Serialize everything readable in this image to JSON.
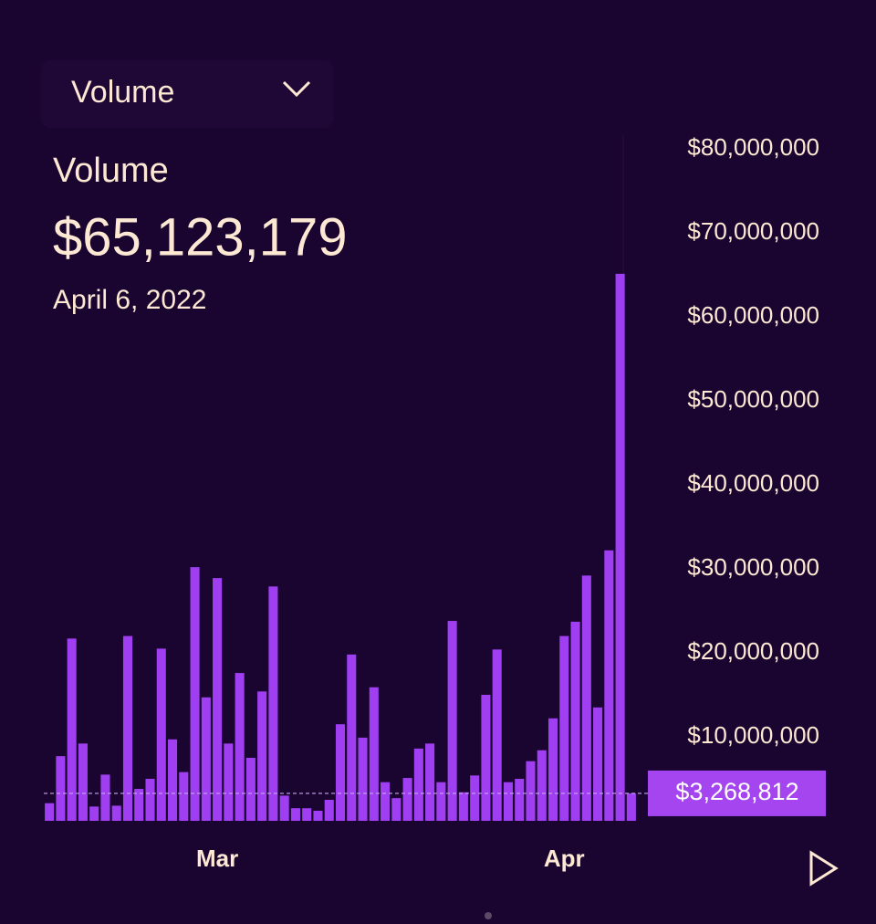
{
  "chart_data": {
    "type": "bar",
    "dropdown": "Volume",
    "title": "Volume",
    "headline": "$65,123,179",
    "subtitle": "April 6, 2022",
    "categories": [
      null,
      null,
      null,
      null,
      null,
      null,
      null,
      null,
      null,
      null,
      null,
      null,
      null,
      null,
      null,
      "Mar",
      null,
      null,
      null,
      null,
      null,
      null,
      null,
      null,
      null,
      null,
      null,
      null,
      null,
      null,
      null,
      null,
      null,
      null,
      null,
      null,
      null,
      null,
      null,
      null,
      null,
      null,
      null,
      null,
      null,
      null,
      "Apr",
      null,
      null,
      null,
      null,
      null,
      null
    ],
    "values": [
      2100000,
      7700000,
      21700000,
      9200000,
      1700000,
      5500000,
      1800000,
      22000000,
      3800000,
      5000000,
      20500000,
      9700000,
      5800000,
      30200000,
      14700000,
      28900000,
      9200000,
      17600000,
      7500000,
      15400000,
      27900000,
      3000000,
      1500000,
      1500000,
      1200000,
      2500000,
      11500000,
      19800000,
      9900000,
      15900000,
      4600000,
      2700000,
      5100000,
      8600000,
      9200000,
      4600000,
      23800000,
      3400000,
      5400000,
      15000000,
      20400000,
      4600000,
      5000000,
      7100000,
      8400000,
      12200000,
      22000000,
      23700000,
      29200000,
      13500000,
      32200000,
      65123179,
      3268812
    ],
    "color": "#a03ff2",
    "ylim": [
      0,
      80000000
    ],
    "yticks": [
      {
        "value": 10000000,
        "label": "$10,000,000"
      },
      {
        "value": 20000000,
        "label": "$20,000,000"
      },
      {
        "value": 30000000,
        "label": "$30,000,000"
      },
      {
        "value": 40000000,
        "label": "$40,000,000"
      },
      {
        "value": 50000000,
        "label": "$50,000,000"
      },
      {
        "value": 60000000,
        "label": "$60,000,000"
      },
      {
        "value": 70000000,
        "label": "$70,000,000"
      },
      {
        "value": 80000000,
        "label": "$80,000,000"
      }
    ],
    "reference_line": {
      "value": 3268812,
      "label": "$3,268,812"
    },
    "grid": false
  }
}
